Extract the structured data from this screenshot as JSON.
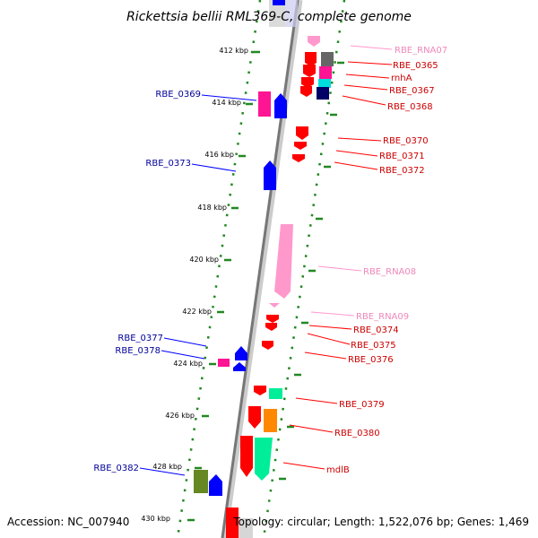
{
  "title": "Rickettsia bellii RML369-C, complete genome",
  "footer": {
    "accession": "Accession: NC_007940",
    "summary": "Topology: circular; Length: 1,522,076 bp; Genes: 1,469"
  },
  "ticks": [
    "412 kbp",
    "414 kbp",
    "416 kbp",
    "418 kbp",
    "420 kbp",
    "422 kbp",
    "424 kbp",
    "426 kbp",
    "428 kbp",
    "430 kbp"
  ],
  "colors": {
    "reverse_gene": "#ff0000",
    "forward_gene": "#0000ff",
    "rna": "#ff99cc",
    "reverse_label": "#cc0000",
    "forward_label": "#000099",
    "rna_label": "#ee88bb",
    "axis": "#777777",
    "dots": "#228822"
  },
  "labels": {
    "rbe_rna07": "RBE_RNA07",
    "rbe_0365": "RBE_0365",
    "rnha": "rnhA",
    "rbe_0367": "RBE_0367",
    "rbe_0368": "RBE_0368",
    "rbe_0369": "RBE_0369",
    "rbe_0370": "RBE_0370",
    "rbe_0371": "RBE_0371",
    "rbe_0372": "RBE_0372",
    "rbe_0373": "RBE_0373",
    "rbe_rna08": "RBE_RNA08",
    "rbe_rna09": "RBE_RNA09",
    "rbe_0374": "RBE_0374",
    "rbe_0375": "RBE_0375",
    "rbe_0376": "RBE_0376",
    "rbe_0377": "RBE_0377",
    "rbe_0378": "RBE_0378",
    "rbe_0379": "RBE_0379",
    "rbe_0380": "RBE_0380",
    "mdlb": "mdlB",
    "rbe_0382": "RBE_0382"
  }
}
